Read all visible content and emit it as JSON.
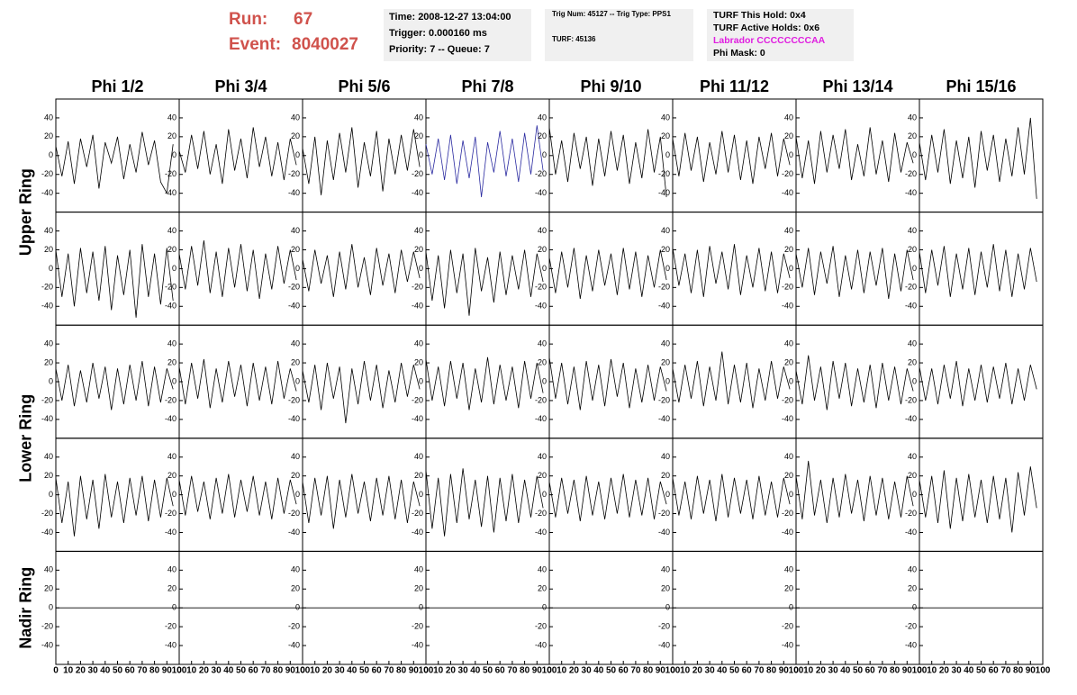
{
  "header": {
    "run_label": "Run:",
    "run": "67",
    "event_label": "Event:",
    "event": "8040027",
    "info1": [
      "Time: 2008-12-27 13:04:00",
      "Trigger: 0.000160 ms",
      "Priority: 7 -- Queue: 7"
    ],
    "info2": [
      "Trig Num: 45127 -- Trig Type: PPS1",
      "TURF: 45136"
    ],
    "info3": [
      "TURF This Hold: 0x4",
      "TURF Active Holds: 0x6",
      "Labrador CCCCCCCCAA",
      "Phi Mask: 0"
    ],
    "labrador_color": "#e01ee0",
    "run_color": "#d0524c"
  },
  "chart_data": {
    "type": "line",
    "columns": [
      "Phi 1/2",
      "Phi 3/4",
      "Phi 5/6",
      "Phi 7/8",
      "Phi 9/10",
      "Phi 11/12",
      "Phi 13/14",
      "Phi 15/16"
    ],
    "rings": [
      "Upper Ring",
      "Lower Ring",
      "Nadir Ring"
    ],
    "xlim": [
      0,
      100
    ],
    "xticks": [
      0,
      10,
      20,
      30,
      40,
      50,
      60,
      70,
      80,
      90,
      100
    ],
    "ylim": [
      -60,
      60
    ],
    "yticks": [
      -40,
      -20,
      0,
      20,
      40
    ],
    "rows": [
      {
        "x": [
          0,
          5,
          10,
          15,
          20,
          25,
          30,
          35,
          40,
          45,
          50,
          55,
          60,
          65,
          70,
          75,
          80,
          85,
          90,
          95,
          100
        ],
        "series": [
          {
            "color": "#000000",
            "values": [
              10,
              -22,
              15,
              -30,
              18,
              -12,
              22,
              -35,
              14,
              -8,
              20,
              -25,
              12,
              -18,
              25,
              -10,
              16,
              -28,
              -40,
              12,
              null
            ]
          },
          {
            "color": "#000000",
            "values": [
              5,
              -18,
              22,
              -14,
              26,
              -20,
              12,
              -30,
              28,
              -16,
              18,
              -24,
              30,
              -12,
              20,
              -22,
              14,
              -26,
              18,
              -10,
              null
            ]
          },
          {
            "color": "#000000",
            "values": [
              8,
              -30,
              20,
              -42,
              16,
              -26,
              24,
              -18,
              30,
              -34,
              14,
              -22,
              26,
              -38,
              18,
              -20,
              22,
              -16,
              28,
              -12,
              null
            ]
          },
          {
            "color": "#2a2aa0",
            "values": [
              12,
              -20,
              18,
              -26,
              22,
              -30,
              16,
              -24,
              20,
              -44,
              14,
              -18,
              26,
              -22,
              18,
              -28,
              24,
              -20,
              32,
              -16,
              null
            ]
          },
          {
            "color": "#000000",
            "values": [
              30,
              -20,
              16,
              -28,
              24,
              -14,
              20,
              -32,
              18,
              -22,
              26,
              -16,
              22,
              -30,
              14,
              -24,
              28,
              -18,
              20,
              -44,
              null
            ]
          },
          {
            "color": "#000000",
            "values": [
              18,
              -22,
              24,
              -16,
              20,
              -28,
              14,
              -20,
              26,
              -18,
              22,
              -26,
              16,
              -30,
              20,
              -14,
              24,
              -22,
              18,
              -10,
              null
            ]
          },
          {
            "color": "#000000",
            "values": [
              20,
              -24,
              16,
              -30,
              26,
              -18,
              22,
              -14,
              28,
              -26,
              12,
              -22,
              30,
              -20,
              16,
              -28,
              24,
              -18,
              14,
              -8,
              null
            ]
          },
          {
            "color": "#000000",
            "values": [
              14,
              -26,
              22,
              -18,
              28,
              -30,
              16,
              -24,
              20,
              -34,
              26,
              -16,
              22,
              -28,
              18,
              -22,
              30,
              -20,
              40,
              -46,
              null
            ]
          }
        ]
      },
      {
        "x": [
          0,
          5,
          10,
          15,
          20,
          25,
          30,
          35,
          40,
          45,
          50,
          55,
          60,
          65,
          70,
          75,
          80,
          85,
          90,
          95,
          100
        ],
        "series": [
          {
            "color": "#000000",
            "values": [
              20,
              -30,
              16,
              -40,
              22,
              -26,
              18,
              -34,
              24,
              -44,
              14,
              -28,
              20,
              -52,
              26,
              -30,
              16,
              -38,
              22,
              -34,
              null
            ]
          },
          {
            "color": "#000000",
            "values": [
              16,
              -22,
              24,
              -18,
              30,
              -26,
              18,
              -30,
              22,
              -20,
              26,
              -24,
              20,
              -32,
              16,
              -22,
              24,
              -16,
              20,
              -12,
              null
            ]
          },
          {
            "color": "#000000",
            "values": [
              10,
              -24,
              20,
              -16,
              14,
              -30,
              18,
              -22,
              26,
              -20,
              12,
              -28,
              22,
              -18,
              16,
              -26,
              20,
              -14,
              18,
              -10,
              null
            ]
          },
          {
            "color": "#000000",
            "values": [
              18,
              -34,
              14,
              -42,
              20,
              -26,
              16,
              -50,
              22,
              -24,
              12,
              -36,
              18,
              -28,
              14,
              -22,
              20,
              -30,
              16,
              -14,
              null
            ]
          },
          {
            "color": "#000000",
            "values": [
              12,
              -26,
              18,
              -20,
              22,
              -32,
              14,
              -24,
              20,
              -18,
              16,
              -28,
              22,
              -22,
              18,
              -30,
              14,
              -20,
              20,
              -12,
              null
            ]
          },
          {
            "color": "#000000",
            "values": [
              22,
              -18,
              16,
              -26,
              20,
              -30,
              24,
              -16,
              18,
              -22,
              26,
              -28,
              14,
              -20,
              22,
              -24,
              18,
              -26,
              16,
              -10,
              null
            ]
          },
          {
            "color": "#000000",
            "values": [
              16,
              -20,
              22,
              -28,
              18,
              -16,
              24,
              -30,
              14,
              -22,
              20,
              -26,
              18,
              -18,
              22,
              -32,
              16,
              -24,
              20,
              -12,
              null
            ]
          },
          {
            "color": "#000000",
            "values": [
              18,
              -26,
              20,
              -18,
              24,
              -30,
              16,
              -22,
              22,
              -28,
              18,
              -20,
              26,
              -24,
              20,
              -30,
              16,
              -22,
              22,
              -14,
              null
            ]
          }
        ]
      },
      {
        "x": [
          0,
          5,
          10,
          15,
          20,
          25,
          30,
          35,
          40,
          45,
          50,
          55,
          60,
          65,
          70,
          75,
          80,
          85,
          90,
          95,
          100
        ],
        "series": [
          {
            "color": "#000000",
            "values": [
              14,
              -20,
              18,
              -26,
              12,
              -22,
              20,
              -18,
              16,
              -30,
              14,
              -24,
              18,
              -20,
              22,
              -26,
              16,
              -22,
              14,
              -8,
              null
            ]
          },
          {
            "color": "#000000",
            "values": [
              16,
              -24,
              20,
              -18,
              24,
              -28,
              14,
              -22,
              22,
              -16,
              18,
              -26,
              20,
              -20,
              16,
              -24,
              22,
              -18,
              14,
              -10,
              null
            ]
          },
          {
            "color": "#000000",
            "values": [
              12,
              -22,
              18,
              -30,
              20,
              -18,
              16,
              -44,
              14,
              -24,
              22,
              -20,
              18,
              -28,
              12,
              -22,
              20,
              -16,
              18,
              -8,
              null
            ]
          },
          {
            "color": "#000000",
            "values": [
              24,
              -20,
              16,
              -26,
              22,
              -18,
              20,
              -30,
              14,
              -22,
              26,
              -24,
              18,
              -20,
              16,
              -28,
              22,
              -18,
              20,
              -12,
              null
            ]
          },
          {
            "color": "#000000",
            "values": [
              26,
              -18,
              20,
              -24,
              16,
              -30,
              22,
              -20,
              18,
              -26,
              24,
              -16,
              20,
              -28,
              14,
              -22,
              18,
              -20,
              16,
              -10,
              null
            ]
          },
          {
            "color": "#000000",
            "values": [
              14,
              -22,
              18,
              -18,
              22,
              -26,
              16,
              -20,
              32,
              -24,
              18,
              -22,
              20,
              -28,
              14,
              -20,
              22,
              -18,
              16,
              -8,
              null
            ]
          },
          {
            "color": "#000000",
            "values": [
              12,
              -24,
              28,
              -20,
              16,
              -30,
              22,
              -18,
              20,
              -26,
              14,
              -22,
              18,
              -28,
              20,
              -20,
              16,
              -24,
              14,
              -10,
              null
            ]
          },
          {
            "color": "#000000",
            "values": [
              16,
              -20,
              14,
              -24,
              18,
              -18,
              22,
              -26,
              14,
              -20,
              18,
              -22,
              16,
              -18,
              20,
              -24,
              14,
              -20,
              18,
              -8,
              null
            ]
          }
        ]
      },
      {
        "x": [
          0,
          5,
          10,
          15,
          20,
          25,
          30,
          35,
          40,
          45,
          50,
          55,
          60,
          65,
          70,
          75,
          80,
          85,
          90,
          95,
          100
        ],
        "series": [
          {
            "color": "#000000",
            "values": [
              18,
              -30,
              14,
              -44,
              20,
              -26,
              16,
              -36,
              22,
              -24,
              14,
              -30,
              18,
              -22,
              20,
              -28,
              16,
              -24,
              18,
              -12,
              null
            ]
          },
          {
            "color": "#000000",
            "values": [
              16,
              -22,
              20,
              -18,
              14,
              -26,
              18,
              -20,
              22,
              -24,
              16,
              -18,
              20,
              -22,
              14,
              -26,
              18,
              -20,
              16,
              -10,
              null
            ]
          },
          {
            "color": "#000000",
            "values": [
              14,
              -30,
              18,
              -22,
              20,
              -36,
              16,
              -24,
              22,
              -20,
              14,
              -28,
              18,
              -22,
              20,
              -26,
              16,
              -30,
              14,
              -12,
              null
            ]
          },
          {
            "color": "#000000",
            "values": [
              26,
              -36,
              18,
              -44,
              22,
              -30,
              28,
              -26,
              16,
              -34,
              20,
              -40,
              18,
              -28,
              22,
              -30,
              16,
              -24,
              20,
              -14,
              null
            ]
          },
          {
            "color": "#000000",
            "values": [
              14,
              -24,
              18,
              -20,
              16,
              -28,
              20,
              -22,
              14,
              -26,
              18,
              -20,
              22,
              -24,
              16,
              -22,
              18,
              -26,
              14,
              -10,
              null
            ]
          },
          {
            "color": "#000000",
            "values": [
              18,
              -22,
              14,
              -26,
              20,
              -20,
              16,
              -28,
              22,
              -24,
              18,
              -20,
              16,
              -26,
              20,
              -22,
              14,
              -24,
              18,
              -10,
              null
            ]
          },
          {
            "color": "#000000",
            "values": [
              20,
              -26,
              36,
              -22,
              16,
              -30,
              18,
              -24,
              22,
              -20,
              16,
              -28,
              20,
              -22,
              18,
              -26,
              14,
              -24,
              20,
              -12,
              null
            ]
          },
          {
            "color": "#000000",
            "values": [
              16,
              -24,
              20,
              -30,
              26,
              -36,
              18,
              -28,
              22,
              -24,
              16,
              -30,
              20,
              -26,
              18,
              -40,
              24,
              -22,
              30,
              -14,
              null
            ]
          }
        ]
      },
      {
        "x": [
          0,
          100
        ],
        "series": [
          {
            "color": "#000000",
            "values": [
              0,
              0
            ]
          },
          {
            "color": "#000000",
            "values": [
              0,
              0
            ]
          },
          {
            "color": "#000000",
            "values": [
              0,
              0
            ]
          },
          {
            "color": "#000000",
            "values": [
              0,
              0
            ]
          },
          {
            "color": "#000000",
            "values": [
              0,
              0
            ]
          },
          {
            "color": "#000000",
            "values": [
              0,
              0
            ]
          },
          {
            "color": "#000000",
            "values": [
              0,
              0
            ]
          },
          {
            "color": "#000000",
            "values": [
              0,
              0
            ]
          }
        ]
      }
    ]
  }
}
